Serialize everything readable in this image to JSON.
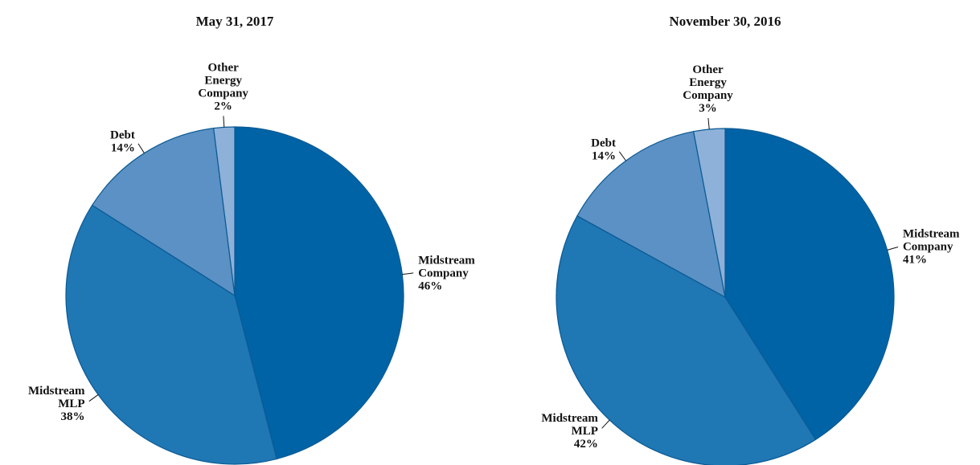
{
  "chart_data": [
    {
      "type": "pie",
      "title": "May 31, 2017",
      "categories": [
        "Midstream Company",
        "Midstream MLP",
        "Debt",
        "Other Energy Company"
      ],
      "values": [
        46,
        38,
        14,
        2
      ],
      "value_labels": [
        "46%",
        "38%",
        "14%",
        "2%"
      ],
      "colors": [
        "#0063a5",
        "#1f77b4",
        "#5b91c4",
        "#8eb1d9"
      ]
    },
    {
      "type": "pie",
      "title": "November 30, 2016",
      "categories": [
        "Midstream Company",
        "Midstream MLP",
        "Debt",
        "Other Energy Company"
      ],
      "values": [
        41,
        42,
        14,
        3
      ],
      "value_labels": [
        "41%",
        "42%",
        "14%",
        "3%"
      ],
      "colors": [
        "#0063a5",
        "#1f77b4",
        "#5b91c4",
        "#8eb1d9"
      ]
    }
  ]
}
